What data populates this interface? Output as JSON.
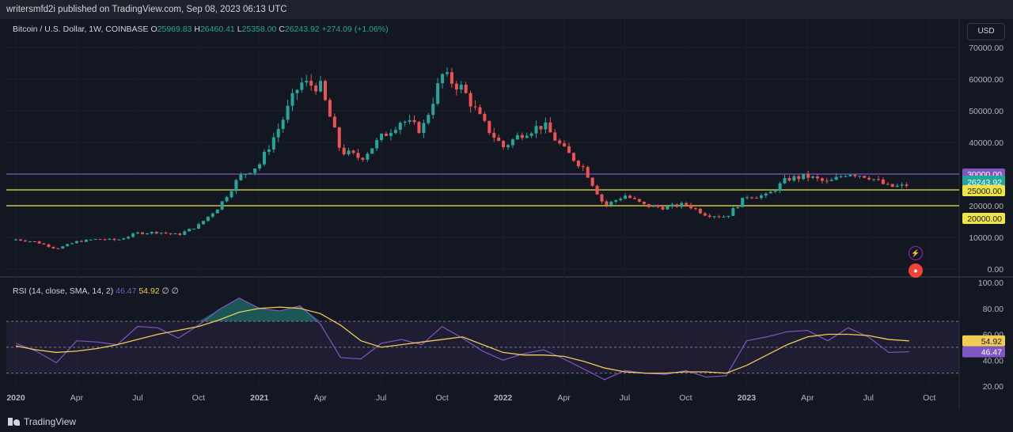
{
  "header": {
    "publisher_line": "writersmfd2i published on TradingView.com, Sep 08, 2023 06:13 UTC"
  },
  "legend": {
    "symbol": "Bitcoin / U.S. Dollar, 1W, COINBASE",
    "open_label": "O",
    "open": "25969.83",
    "high_label": "H",
    "high": "26460.41",
    "low_label": "L",
    "low": "25358.00",
    "close_label": "C",
    "close": "26243.92",
    "change": "+274.09 (+1.06%)"
  },
  "currency": "USD",
  "rsi_legend": {
    "title": "RSI (14, close, SMA, 14, 2)",
    "rsi": "46.47",
    "sma": "54.92",
    "flags": "∅  ∅"
  },
  "footer": {
    "brand": "TradingView"
  },
  "colors": {
    "up": "#26a69a",
    "down": "#ef5350",
    "purple_line": "#7e57c2",
    "yellow_line": "#f0e442",
    "rsi": "#7e57c2",
    "rsi_ma": "#f0cc55"
  },
  "chart_data": [
    {
      "type": "candlestick",
      "title": "Bitcoin / U.S. Dollar, 1W, COINBASE",
      "y_ticks": [
        "70000.00",
        "60000.00",
        "50000.00",
        "40000.00",
        "30000.00",
        "20000.00",
        "10000.00",
        "0.00"
      ],
      "ylim": [
        0,
        72000
      ],
      "x_ticks": [
        "2020",
        "Apr",
        "Jul",
        "Oct",
        "2021",
        "Apr",
        "Jul",
        "Oct",
        "2022",
        "Apr",
        "Jul",
        "Oct",
        "2023",
        "Apr",
        "Jul",
        "Oct"
      ],
      "horizontal_lines": [
        {
          "value": 30000,
          "label": "30000.00",
          "color": "#7e57c2"
        },
        {
          "value": 25000,
          "label": "25000.00",
          "color": "#f0e442"
        },
        {
          "value": 20000,
          "label": "20000.00",
          "color": "#f0e442"
        }
      ],
      "last_price": {
        "value": 26243.92,
        "label": "26243.92",
        "countdown": "2d 18h"
      },
      "monthly_close": [
        [
          "2020-01",
          9350
        ],
        [
          "2020-02",
          8550
        ],
        [
          "2020-03",
          6400
        ],
        [
          "2020-04",
          8650
        ],
        [
          "2020-05",
          9450
        ],
        [
          "2020-06",
          9150
        ],
        [
          "2020-07",
          11350
        ],
        [
          "2020-08",
          11650
        ],
        [
          "2020-09",
          10800
        ],
        [
          "2020-10",
          13800
        ],
        [
          "2020-11",
          19700
        ],
        [
          "2020-12",
          29000
        ],
        [
          "2021-01",
          33100
        ],
        [
          "2021-02",
          45200
        ],
        [
          "2021-03",
          58800
        ],
        [
          "2021-04",
          57700
        ],
        [
          "2021-05",
          37300
        ],
        [
          "2021-06",
          35000
        ],
        [
          "2021-07",
          41500
        ],
        [
          "2021-08",
          47100
        ],
        [
          "2021-09",
          43800
        ],
        [
          "2021-10",
          61300
        ],
        [
          "2021-11",
          57000
        ],
        [
          "2021-12",
          46300
        ],
        [
          "2022-01",
          38500
        ],
        [
          "2022-02",
          43200
        ],
        [
          "2022-03",
          45500
        ],
        [
          "2022-04",
          37700
        ],
        [
          "2022-05",
          31800
        ],
        [
          "2022-06",
          19900
        ],
        [
          "2022-07",
          23300
        ],
        [
          "2022-08",
          20000
        ],
        [
          "2022-09",
          19400
        ],
        [
          "2022-10",
          20500
        ],
        [
          "2022-11",
          17200
        ],
        [
          "2022-12",
          16550
        ],
        [
          "2023-01",
          23100
        ],
        [
          "2023-02",
          23150
        ],
        [
          "2023-03",
          28500
        ],
        [
          "2023-04",
          29250
        ],
        [
          "2023-05",
          27200
        ],
        [
          "2023-06",
          30450
        ],
        [
          "2023-07",
          29250
        ],
        [
          "2023-08",
          25950
        ],
        [
          "2023-09",
          26243.92
        ]
      ]
    },
    {
      "type": "line",
      "title": "RSI (14, close, SMA, 14, 2)",
      "y_ticks": [
        "100.00",
        "80.00",
        "60.00",
        "40.00",
        "20.00"
      ],
      "ylim": [
        20,
        100
      ],
      "bands": [
        70,
        50,
        30
      ],
      "series": [
        {
          "name": "RSI",
          "values": [
            53,
            47,
            38,
            55,
            54,
            52,
            66,
            65,
            57,
            67,
            79,
            88,
            80,
            78,
            82,
            68,
            42,
            41,
            53,
            56,
            52,
            66,
            57,
            47,
            40,
            45,
            48,
            41,
            33,
            25,
            32,
            30,
            29,
            32,
            27,
            28,
            55,
            58,
            62,
            63,
            55,
            65,
            58,
            46,
            46.47
          ]
        },
        {
          "name": "RSI-based MA",
          "values": [
            51,
            48,
            46,
            47,
            49,
            52,
            56,
            60,
            63,
            66,
            71,
            77,
            80,
            81,
            80,
            76,
            67,
            55,
            50,
            52,
            54,
            56,
            58,
            52,
            46,
            44,
            44,
            43,
            39,
            34,
            31,
            30,
            30,
            31,
            31,
            30,
            36,
            44,
            52,
            58,
            60,
            60,
            59,
            56,
            54.92
          ]
        }
      ]
    }
  ]
}
